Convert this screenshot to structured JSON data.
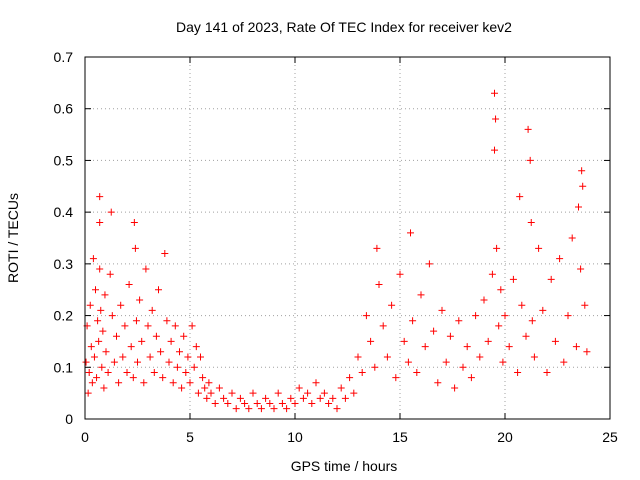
{
  "chart_data": {
    "type": "scatter",
    "title": "Day 141 of 2023, Rate Of TEC Index for receiver kev2",
    "xlabel": "GPS time / hours",
    "ylabel": "ROTI / TECUs",
    "xlim": [
      0,
      25
    ],
    "ylim": [
      0,
      0.7
    ],
    "xticks": [
      0,
      5,
      10,
      15,
      20,
      25
    ],
    "xtick_labels": [
      "0",
      "5",
      "10",
      "15",
      "20",
      "25"
    ],
    "yticks": [
      0,
      0.1,
      0.2,
      0.3,
      0.4,
      0.5,
      0.6,
      0.7
    ],
    "ytick_labels": [
      "0",
      "0.1",
      "0.2",
      "0.3",
      "0.4",
      "0.5",
      "0.6",
      "0.7"
    ],
    "grid": true,
    "marker": "+",
    "color": "#ff0000",
    "series": [
      {
        "name": "ROTI",
        "x": [
          0.05,
          0.1,
          0.15,
          0.2,
          0.25,
          0.3,
          0.35,
          0.4,
          0.45,
          0.5,
          0.55,
          0.6,
          0.65,
          0.7,
          0.7,
          0.7,
          0.75,
          0.8,
          0.85,
          0.9,
          0.95,
          1.0,
          1.1,
          1.2,
          1.25,
          1.3,
          1.4,
          1.5,
          1.6,
          1.7,
          1.8,
          1.9,
          2.0,
          2.1,
          2.2,
          2.3,
          2.35,
          2.4,
          2.45,
          2.5,
          2.6,
          2.7,
          2.8,
          2.9,
          3.0,
          3.1,
          3.2,
          3.3,
          3.4,
          3.5,
          3.6,
          3.7,
          3.8,
          3.9,
          4.0,
          4.1,
          4.2,
          4.3,
          4.4,
          4.5,
          4.6,
          4.7,
          4.8,
          4.9,
          5.0,
          5.1,
          5.2,
          5.3,
          5.4,
          5.5,
          5.6,
          5.7,
          5.8,
          5.9,
          6.0,
          6.2,
          6.4,
          6.6,
          6.8,
          7.0,
          7.2,
          7.4,
          7.6,
          7.8,
          8.0,
          8.2,
          8.4,
          8.6,
          8.8,
          9.0,
          9.2,
          9.4,
          9.6,
          9.8,
          10.0,
          10.2,
          10.4,
          10.6,
          10.8,
          11.0,
          11.2,
          11.4,
          11.6,
          11.8,
          12.0,
          12.2,
          12.4,
          12.6,
          12.8,
          13.0,
          13.2,
          13.4,
          13.6,
          13.8,
          13.9,
          14.0,
          14.2,
          14.4,
          14.6,
          14.8,
          15.0,
          15.2,
          15.4,
          15.5,
          15.6,
          15.8,
          16.0,
          16.2,
          16.4,
          16.6,
          16.8,
          17.0,
          17.2,
          17.4,
          17.6,
          17.8,
          18.0,
          18.2,
          18.4,
          18.6,
          18.8,
          19.0,
          19.2,
          19.4,
          19.5,
          19.5,
          19.55,
          19.6,
          19.7,
          19.8,
          19.9,
          20.0,
          20.2,
          20.4,
          20.6,
          20.7,
          20.8,
          21.0,
          21.1,
          21.2,
          21.25,
          21.3,
          21.4,
          21.6,
          21.8,
          22.0,
          22.2,
          22.4,
          22.6,
          22.8,
          23.0,
          23.2,
          23.4,
          23.5,
          23.6,
          23.65,
          23.7,
          23.8,
          23.9
        ],
        "y": [
          0.11,
          0.18,
          0.05,
          0.09,
          0.22,
          0.14,
          0.07,
          0.31,
          0.12,
          0.25,
          0.08,
          0.19,
          0.15,
          0.43,
          0.38,
          0.29,
          0.21,
          0.1,
          0.17,
          0.06,
          0.24,
          0.13,
          0.09,
          0.28,
          0.4,
          0.2,
          0.11,
          0.16,
          0.07,
          0.22,
          0.12,
          0.18,
          0.09,
          0.26,
          0.14,
          0.08,
          0.38,
          0.33,
          0.19,
          0.11,
          0.23,
          0.15,
          0.07,
          0.29,
          0.18,
          0.12,
          0.21,
          0.09,
          0.16,
          0.25,
          0.13,
          0.08,
          0.32,
          0.19,
          0.11,
          0.15,
          0.07,
          0.18,
          0.1,
          0.13,
          0.06,
          0.16,
          0.09,
          0.12,
          0.07,
          0.18,
          0.1,
          0.14,
          0.05,
          0.12,
          0.08,
          0.06,
          0.04,
          0.07,
          0.05,
          0.03,
          0.06,
          0.04,
          0.03,
          0.05,
          0.02,
          0.04,
          0.03,
          0.02,
          0.05,
          0.03,
          0.02,
          0.04,
          0.03,
          0.02,
          0.05,
          0.03,
          0.02,
          0.04,
          0.03,
          0.06,
          0.04,
          0.05,
          0.03,
          0.07,
          0.04,
          0.05,
          0.03,
          0.04,
          0.02,
          0.06,
          0.04,
          0.08,
          0.05,
          0.12,
          0.09,
          0.2,
          0.15,
          0.1,
          0.33,
          0.26,
          0.18,
          0.12,
          0.22,
          0.08,
          0.28,
          0.15,
          0.11,
          0.36,
          0.19,
          0.09,
          0.24,
          0.14,
          0.3,
          0.17,
          0.07,
          0.21,
          0.11,
          0.16,
          0.06,
          0.19,
          0.1,
          0.14,
          0.08,
          0.2,
          0.12,
          0.23,
          0.15,
          0.28,
          0.63,
          0.52,
          0.58,
          0.33,
          0.18,
          0.25,
          0.11,
          0.2,
          0.14,
          0.27,
          0.09,
          0.43,
          0.22,
          0.16,
          0.56,
          0.5,
          0.38,
          0.19,
          0.12,
          0.33,
          0.21,
          0.09,
          0.27,
          0.15,
          0.31,
          0.11,
          0.2,
          0.35,
          0.14,
          0.41,
          0.29,
          0.48,
          0.45,
          0.22,
          0.13
        ]
      }
    ]
  }
}
